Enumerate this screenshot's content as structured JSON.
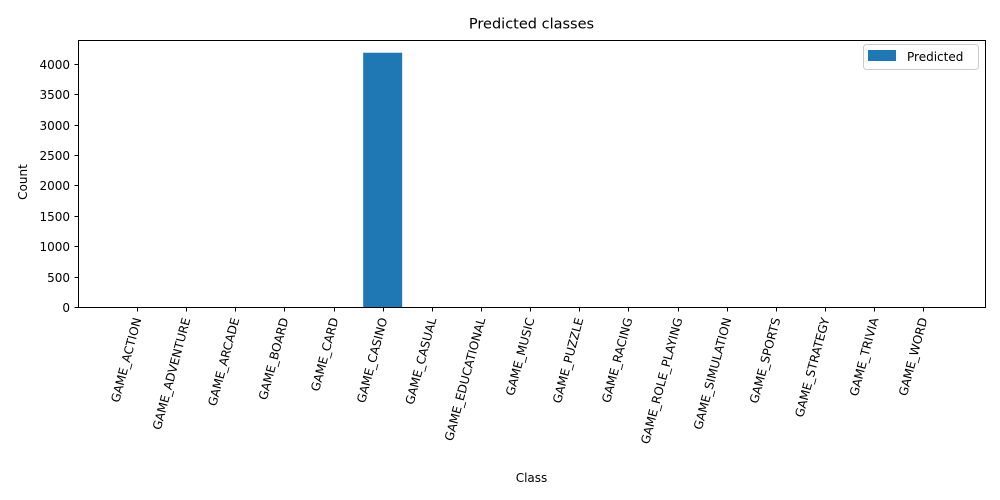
{
  "chart_data": {
    "type": "bar",
    "title": "Predicted classes",
    "xlabel": "Class",
    "ylabel": "Count",
    "categories": [
      "GAME_ACTION",
      "GAME_ADVENTURE",
      "GAME_ARCADE",
      "GAME_BOARD",
      "GAME_CARD",
      "GAME_CASINO",
      "GAME_CASUAL",
      "GAME_EDUCATIONAL",
      "GAME_MUSIC",
      "GAME_PUZZLE",
      "GAME_RACING",
      "GAME_ROLE_PLAYING",
      "GAME_SIMULATION",
      "GAME_SPORTS",
      "GAME_STRATEGY",
      "GAME_TRIVIA",
      "GAME_WORD"
    ],
    "series": [
      {
        "name": "Predicted",
        "color": "#1f77b4",
        "values": [
          0,
          0,
          0,
          0,
          0,
          4181,
          0,
          0,
          0,
          0,
          0,
          0,
          0,
          0,
          0,
          0,
          0
        ]
      }
    ],
    "ylim": [
      0,
      4390
    ],
    "yticks": [
      0,
      500,
      1000,
      1500,
      2000,
      2500,
      3000,
      3500,
      4000
    ],
    "legend": "top-right",
    "grid": false
  }
}
